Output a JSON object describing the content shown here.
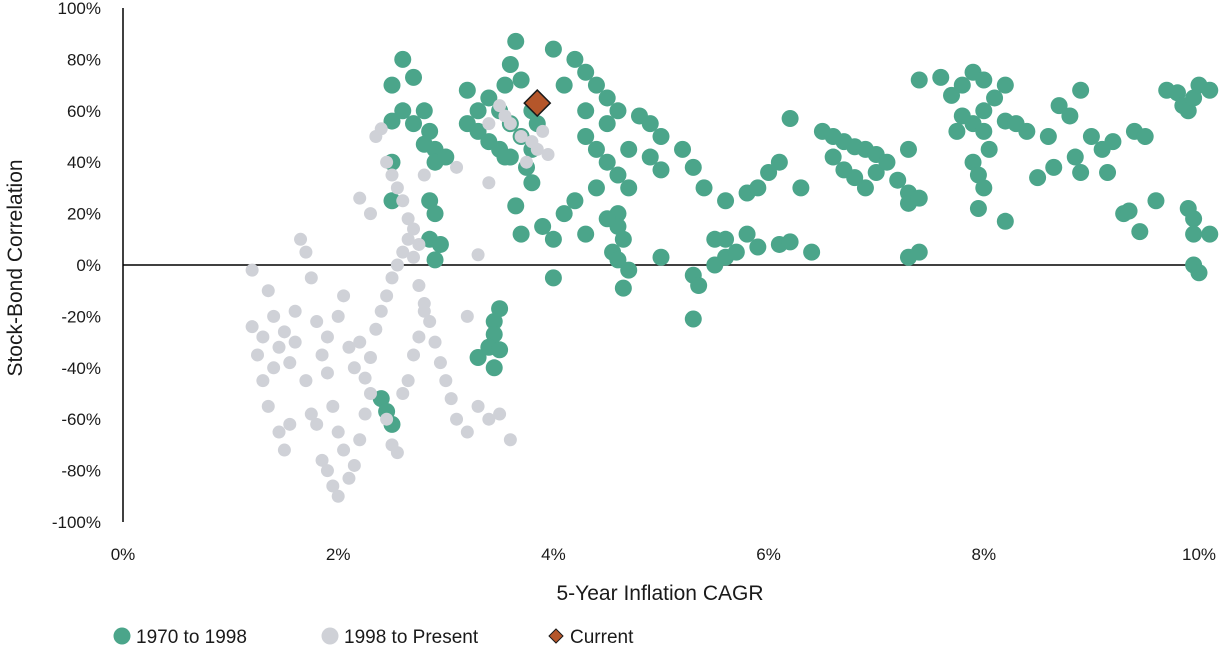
{
  "chart_data": {
    "type": "scatter",
    "title": "",
    "xlabel": "5-Year Inflation CAGR",
    "ylabel": "Stock-Bond Correlation",
    "xlim": [
      0,
      10
    ],
    "ylim": [
      -100,
      100
    ],
    "x_unit": "%",
    "y_unit": "%",
    "x_ticks": [
      "0%",
      "2%",
      "4%",
      "6%",
      "8%",
      "10%"
    ],
    "y_ticks": [
      "100%",
      "80%",
      "60%",
      "40%",
      "20%",
      "0%",
      "-20%",
      "-40%",
      "-60%",
      "-80%",
      "-100%"
    ],
    "grid": false,
    "zero_line": true,
    "legend_position": "bottom-left",
    "series": [
      {
        "name": "1970 to 1998",
        "color": "#4BA58A",
        "marker": "circle",
        "points": [
          [
            2.5,
            70
          ],
          [
            2.6,
            80
          ],
          [
            2.7,
            73
          ],
          [
            2.6,
            60
          ],
          [
            2.5,
            56
          ],
          [
            2.8,
            60
          ],
          [
            2.7,
            55
          ],
          [
            2.85,
            52
          ],
          [
            2.9,
            45
          ],
          [
            2.8,
            47
          ],
          [
            2.9,
            40
          ],
          [
            3.0,
            42
          ],
          [
            2.5,
            40
          ],
          [
            2.5,
            25
          ],
          [
            2.85,
            25
          ],
          [
            2.9,
            20
          ],
          [
            2.85,
            10
          ],
          [
            2.95,
            8
          ],
          [
            2.9,
            2
          ],
          [
            2.4,
            -52
          ],
          [
            2.45,
            -57
          ],
          [
            2.5,
            -62
          ],
          [
            3.2,
            68
          ],
          [
            3.3,
            60
          ],
          [
            3.4,
            65
          ],
          [
            3.2,
            55
          ],
          [
            3.3,
            52
          ],
          [
            3.4,
            48
          ],
          [
            3.5,
            45
          ],
          [
            3.6,
            42
          ],
          [
            3.55,
            70
          ],
          [
            3.6,
            78
          ],
          [
            3.7,
            72
          ],
          [
            3.65,
            87
          ],
          [
            3.5,
            60
          ],
          [
            3.6,
            55
          ],
          [
            3.7,
            50
          ],
          [
            3.8,
            45
          ],
          [
            3.75,
            38
          ],
          [
            3.8,
            32
          ],
          [
            3.55,
            42
          ],
          [
            3.65,
            23
          ],
          [
            3.7,
            12
          ],
          [
            3.8,
            60
          ],
          [
            3.85,
            55
          ],
          [
            3.5,
            -17
          ],
          [
            3.45,
            -22
          ],
          [
            3.45,
            -27
          ],
          [
            3.4,
            -32
          ],
          [
            3.5,
            -33
          ],
          [
            3.3,
            -36
          ],
          [
            3.45,
            -40
          ],
          [
            4.0,
            84
          ],
          [
            4.2,
            80
          ],
          [
            4.3,
            75
          ],
          [
            4.4,
            70
          ],
          [
            4.5,
            65
          ],
          [
            4.6,
            60
          ],
          [
            4.5,
            55
          ],
          [
            4.3,
            50
          ],
          [
            4.4,
            45
          ],
          [
            4.5,
            40
          ],
          [
            4.6,
            35
          ],
          [
            4.7,
            30
          ],
          [
            4.4,
            30
          ],
          [
            4.2,
            25
          ],
          [
            4.1,
            20
          ],
          [
            3.9,
            15
          ],
          [
            4.0,
            10
          ],
          [
            4.1,
            70
          ],
          [
            4.3,
            60
          ],
          [
            4.6,
            20
          ],
          [
            4.6,
            15
          ],
          [
            4.65,
            10
          ],
          [
            4.55,
            5
          ],
          [
            4.6,
            2
          ],
          [
            4.7,
            -2
          ],
          [
            4.65,
            -9
          ],
          [
            4.0,
            -5
          ],
          [
            4.3,
            12
          ],
          [
            4.5,
            18
          ],
          [
            4.7,
            45
          ],
          [
            4.8,
            58
          ],
          [
            4.9,
            55
          ],
          [
            5.0,
            50
          ],
          [
            4.9,
            42
          ],
          [
            5.0,
            37
          ],
          [
            5.2,
            45
          ],
          [
            5.0,
            3
          ],
          [
            5.3,
            38
          ],
          [
            5.4,
            30
          ],
          [
            5.5,
            10
          ],
          [
            5.6,
            10
          ],
          [
            5.3,
            -4
          ],
          [
            5.35,
            -8
          ],
          [
            5.3,
            -21
          ],
          [
            5.6,
            3
          ],
          [
            5.7,
            5
          ],
          [
            5.5,
            0
          ],
          [
            5.6,
            25
          ],
          [
            5.8,
            28
          ],
          [
            5.9,
            30
          ],
          [
            6.0,
            36
          ],
          [
            6.1,
            40
          ],
          [
            5.8,
            12
          ],
          [
            5.9,
            7
          ],
          [
            6.1,
            8
          ],
          [
            6.2,
            9
          ],
          [
            6.2,
            57
          ],
          [
            6.3,
            30
          ],
          [
            6.4,
            5
          ],
          [
            6.5,
            52
          ],
          [
            6.6,
            50
          ],
          [
            6.7,
            48
          ],
          [
            6.8,
            46
          ],
          [
            6.9,
            45
          ],
          [
            7.0,
            43
          ],
          [
            6.6,
            42
          ],
          [
            6.7,
            37
          ],
          [
            6.8,
            34
          ],
          [
            6.9,
            30
          ],
          [
            7.0,
            36
          ],
          [
            7.1,
            40
          ],
          [
            7.2,
            33
          ],
          [
            7.3,
            28
          ],
          [
            7.3,
            24
          ],
          [
            7.4,
            26
          ],
          [
            7.3,
            45
          ],
          [
            7.3,
            3
          ],
          [
            7.4,
            5
          ],
          [
            7.4,
            72
          ],
          [
            7.6,
            73
          ],
          [
            7.8,
            70
          ],
          [
            7.9,
            75
          ],
          [
            8.0,
            72
          ],
          [
            8.2,
            70
          ],
          [
            7.7,
            66
          ],
          [
            7.8,
            58
          ],
          [
            7.9,
            55
          ],
          [
            8.0,
            60
          ],
          [
            8.1,
            65
          ],
          [
            7.75,
            52
          ],
          [
            7.9,
            40
          ],
          [
            7.95,
            35
          ],
          [
            8.0,
            30
          ],
          [
            7.95,
            22
          ],
          [
            8.2,
            17
          ],
          [
            8.0,
            52
          ],
          [
            8.05,
            45
          ],
          [
            8.2,
            56
          ],
          [
            8.3,
            55
          ],
          [
            8.4,
            52
          ],
          [
            8.6,
            50
          ],
          [
            8.5,
            34
          ],
          [
            8.65,
            38
          ],
          [
            8.7,
            62
          ],
          [
            8.8,
            58
          ],
          [
            8.9,
            68
          ],
          [
            8.85,
            42
          ],
          [
            8.9,
            36
          ],
          [
            9.0,
            50
          ],
          [
            9.1,
            45
          ],
          [
            9.15,
            36
          ],
          [
            9.2,
            48
          ],
          [
            9.3,
            20
          ],
          [
            9.35,
            21
          ],
          [
            9.4,
            52
          ],
          [
            9.5,
            50
          ],
          [
            9.45,
            13
          ],
          [
            9.6,
            25
          ],
          [
            9.7,
            68
          ],
          [
            9.8,
            67
          ],
          [
            9.85,
            62
          ],
          [
            9.9,
            60
          ],
          [
            9.95,
            65
          ],
          [
            10.0,
            70
          ],
          [
            10.1,
            68
          ],
          [
            9.9,
            22
          ],
          [
            9.95,
            18
          ],
          [
            9.95,
            12
          ],
          [
            10.1,
            12
          ],
          [
            9.95,
            0
          ],
          [
            10.0,
            -3
          ]
        ]
      },
      {
        "name": "1998 to Present",
        "color": "#CFD1D7",
        "marker": "circle",
        "points": [
          [
            1.2,
            -2
          ],
          [
            1.2,
            -24
          ],
          [
            1.25,
            -35
          ],
          [
            1.3,
            -28
          ],
          [
            1.35,
            -10
          ],
          [
            1.4,
            -20
          ],
          [
            1.3,
            -45
          ],
          [
            1.35,
            -55
          ],
          [
            1.4,
            -40
          ],
          [
            1.45,
            -32
          ],
          [
            1.5,
            -26
          ],
          [
            1.55,
            -38
          ],
          [
            1.6,
            -30
          ],
          [
            1.45,
            -65
          ],
          [
            1.5,
            -72
          ],
          [
            1.55,
            -62
          ],
          [
            1.6,
            -18
          ],
          [
            1.65,
            10
          ],
          [
            1.7,
            5
          ],
          [
            1.75,
            -5
          ],
          [
            1.7,
            -45
          ],
          [
            1.75,
            -58
          ],
          [
            1.8,
            -62
          ],
          [
            1.85,
            -76
          ],
          [
            1.9,
            -80
          ],
          [
            1.95,
            -86
          ],
          [
            2.0,
            -90
          ],
          [
            1.8,
            -22
          ],
          [
            1.85,
            -35
          ],
          [
            1.9,
            -42
          ],
          [
            1.95,
            -55
          ],
          [
            2.0,
            -65
          ],
          [
            2.05,
            -72
          ],
          [
            2.1,
            -83
          ],
          [
            2.15,
            -78
          ],
          [
            2.2,
            -68
          ],
          [
            2.25,
            -58
          ],
          [
            2.3,
            -50
          ],
          [
            1.9,
            -28
          ],
          [
            2.0,
            -20
          ],
          [
            2.05,
            -12
          ],
          [
            2.1,
            -32
          ],
          [
            2.15,
            -40
          ],
          [
            2.2,
            -30
          ],
          [
            2.25,
            -44
          ],
          [
            2.3,
            -36
          ],
          [
            2.35,
            -25
          ],
          [
            2.4,
            -18
          ],
          [
            2.45,
            -12
          ],
          [
            2.5,
            -5
          ],
          [
            2.55,
            0
          ],
          [
            2.6,
            5
          ],
          [
            2.65,
            10
          ],
          [
            2.7,
            3
          ],
          [
            2.75,
            -8
          ],
          [
            2.8,
            -15
          ],
          [
            2.85,
            -22
          ],
          [
            2.9,
            -30
          ],
          [
            2.95,
            -38
          ],
          [
            3.0,
            -45
          ],
          [
            3.05,
            -52
          ],
          [
            3.1,
            -60
          ],
          [
            3.2,
            -65
          ],
          [
            3.3,
            -55
          ],
          [
            3.4,
            -60
          ],
          [
            3.5,
            -58
          ],
          [
            3.6,
            -68
          ],
          [
            3.2,
            -20
          ],
          [
            3.3,
            4
          ],
          [
            3.4,
            32
          ],
          [
            3.1,
            38
          ],
          [
            2.2,
            26
          ],
          [
            2.3,
            20
          ],
          [
            2.35,
            50
          ],
          [
            2.4,
            53
          ],
          [
            2.45,
            40
          ],
          [
            2.5,
            35
          ],
          [
            2.55,
            30
          ],
          [
            2.6,
            25
          ],
          [
            2.65,
            18
          ],
          [
            2.7,
            14
          ],
          [
            2.75,
            8
          ],
          [
            2.8,
            35
          ],
          [
            2.45,
            -60
          ],
          [
            2.5,
            -70
          ],
          [
            2.55,
            -73
          ],
          [
            2.6,
            -50
          ],
          [
            2.65,
            -45
          ],
          [
            2.7,
            -35
          ],
          [
            2.75,
            -28
          ],
          [
            2.8,
            -18
          ],
          [
            3.5,
            62
          ],
          [
            3.6,
            55
          ],
          [
            3.7,
            50
          ],
          [
            3.8,
            48
          ],
          [
            3.9,
            52
          ],
          [
            3.85,
            45
          ],
          [
            3.75,
            40
          ],
          [
            3.95,
            43
          ],
          [
            3.4,
            55
          ],
          [
            3.55,
            58
          ]
        ]
      },
      {
        "name": "Current",
        "color": "#B5562A",
        "marker": "diamond",
        "points": [
          [
            3.85,
            63
          ]
        ]
      }
    ]
  }
}
